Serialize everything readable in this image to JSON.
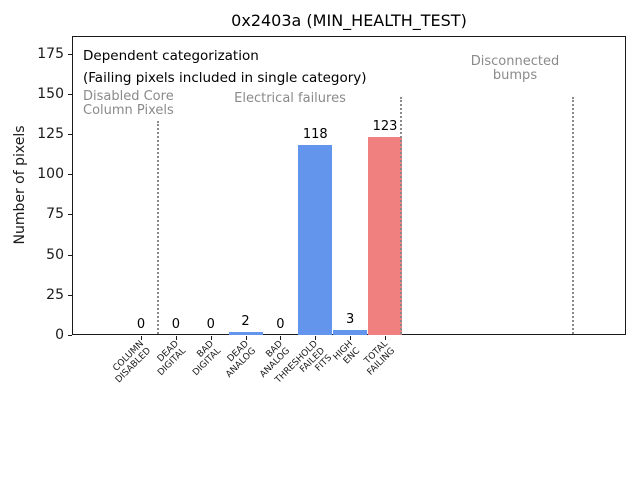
{
  "title": "0x2403a (MIN_HEALTH_TEST)",
  "ylabel": "Number of pixels",
  "annotations": {
    "dependent_line1": "Dependent categorization",
    "dependent_line2": "(Failing pixels included in single category)",
    "region_left_line1": "Disabled Core",
    "region_left_line2": "Column Pixels",
    "region_mid": "Electrical failures",
    "region_right_line1": "Disconnected",
    "region_right_line2": "bumps"
  },
  "colors": {
    "bar_blue": "#6495ed",
    "bar_red": "#f08080",
    "annotation_gray": "#8a8a8a",
    "axis_black": "#1a1a1a"
  },
  "chart_data": {
    "type": "bar",
    "title": "0x2403a (MIN_HEALTH_TEST)",
    "xlabel": "",
    "ylabel": "Number of pixels",
    "categories": [
      "COLUMN DISABLED",
      "DEAD DIGITAL",
      "BAD DIGITAL",
      "DEAD ANALOG",
      "BAD ANALOG",
      "THRESHOLD FAILED FITS",
      "HIGH ENC",
      "TOTAL FAILING"
    ],
    "category_label_lines": [
      [
        "COLUMN",
        "DISABLED"
      ],
      [
        "DEAD",
        "DIGITAL"
      ],
      [
        "BAD",
        "DIGITAL"
      ],
      [
        "DEAD",
        "ANALOG"
      ],
      [
        "BAD",
        "ANALOG"
      ],
      [
        "THRESHOLD",
        "FAILED",
        "FITS"
      ],
      [
        "HIGH",
        "ENC"
      ],
      [
        "TOTAL",
        "FAILING"
      ]
    ],
    "values": [
      0,
      0,
      0,
      2,
      0,
      118,
      3,
      123
    ],
    "bar_value_labels": [
      "0",
      "0",
      "0",
      "2",
      "0",
      "118",
      "3",
      "123"
    ],
    "bar_colors": [
      "#6495ed",
      "#6495ed",
      "#6495ed",
      "#6495ed",
      "#6495ed",
      "#6495ed",
      "#6495ed",
      "#f08080"
    ],
    "yticks": [
      0,
      25,
      50,
      75,
      100,
      125,
      150,
      175
    ],
    "ylim": [
      0,
      186
    ],
    "grid": false,
    "legend_position": "none",
    "regions": [
      {
        "label": "Disabled Core Column Pixels",
        "categories": [
          "COLUMN DISABLED"
        ]
      },
      {
        "label": "Electrical failures",
        "categories": [
          "DEAD DIGITAL",
          "BAD DIGITAL",
          "DEAD ANALOG",
          "BAD ANALOG",
          "THRESHOLD FAILED FITS",
          "HIGH ENC",
          "TOTAL FAILING"
        ]
      },
      {
        "label": "Disconnected bumps",
        "categories": []
      }
    ],
    "separator_style": "vertical gray dotted lines between regions"
  }
}
